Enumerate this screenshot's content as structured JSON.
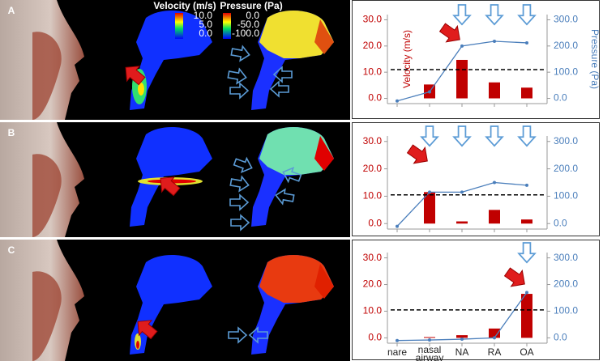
{
  "panel_labels": [
    "A",
    "B",
    "C"
  ],
  "image_legend": {
    "velocity_title": "Velocity (m/s)",
    "velocity_ticks": [
      "10.0",
      "5.0",
      "0.0"
    ],
    "pressure_title": "Pressure (Pa)",
    "pressure_ticks": [
      "0.0",
      "-50.0",
      "-100.0"
    ]
  },
  "chart_data": [
    {
      "type": "bar",
      "y_label": "Velocity (m/s)",
      "y2_label": "Pressure (Pa)",
      "ylim": [
        -2,
        32
      ],
      "yticks": [
        {
          "value": 0,
          "label": "0.0"
        },
        {
          "value": 10,
          "label": "10.0"
        },
        {
          "value": 20,
          "label": "20.0"
        },
        {
          "value": 30,
          "label": "30.0"
        }
      ],
      "y2lim": [
        -20,
        320
      ],
      "y2ticks": [
        {
          "value": 0,
          "label": "0.0"
        },
        {
          "value": 100,
          "label": "100.0"
        },
        {
          "value": 200,
          "label": "200.0"
        },
        {
          "value": 300,
          "label": "300.0"
        }
      ],
      "reference_line": 11,
      "series": [
        {
          "color": "#c00000",
          "values": [
            0,
            5.3,
            14.7,
            6.1,
            4.1
          ]
        },
        {
          "type": "line",
          "axis": "y2",
          "color": "#4a7ebb",
          "values": [
            -10,
            25,
            200,
            218,
            212
          ]
        }
      ]
    },
    {
      "type": "bar",
      "ylim": [
        -2,
        32
      ],
      "yticks": [
        {
          "value": 0,
          "label": "0.0"
        },
        {
          "value": 10,
          "label": "10.0"
        },
        {
          "value": 20,
          "label": "20.0"
        },
        {
          "value": 30,
          "label": "30.0"
        }
      ],
      "y2lim": [
        -20,
        320
      ],
      "y2ticks": [
        {
          "value": 0,
          "label": "0.0"
        },
        {
          "value": 100,
          "label": "100.0"
        },
        {
          "value": 200,
          "label": "200.0"
        },
        {
          "value": 300,
          "label": "300.0"
        }
      ],
      "reference_line": 10.5,
      "series": [
        {
          "color": "#c00000",
          "values": [
            0,
            11.5,
            0.8,
            5,
            1.5
          ]
        },
        {
          "type": "line",
          "axis": "y2",
          "color": "#4a7ebb",
          "values": [
            -10,
            115,
            115,
            150,
            140
          ]
        }
      ]
    },
    {
      "type": "bar",
      "categories": [
        "nare",
        "nasal airway",
        "NA",
        "RA",
        "OA"
      ],
      "ylim": [
        -2,
        32
      ],
      "yticks": [
        {
          "value": 0,
          "label": "0.0"
        },
        {
          "value": 10,
          "label": "10.0"
        },
        {
          "value": 20,
          "label": "20.0"
        },
        {
          "value": 30,
          "label": "30.0"
        }
      ],
      "y2lim": [
        -20,
        320
      ],
      "y2ticks": [
        {
          "value": 0,
          "label": "0.0"
        },
        {
          "value": 100,
          "label": "100.0"
        },
        {
          "value": 200,
          "label": "200.0"
        },
        {
          "value": 300,
          "label": "300.0"
        }
      ],
      "reference_line": 10.5,
      "series": [
        {
          "color": "#c00000",
          "values": [
            0,
            0.3,
            1,
            3.5,
            16.5
          ]
        },
        {
          "type": "line",
          "axis": "y2",
          "color": "#4a7ebb",
          "values": [
            -10,
            -8,
            -5,
            0,
            170
          ]
        }
      ]
    }
  ]
}
